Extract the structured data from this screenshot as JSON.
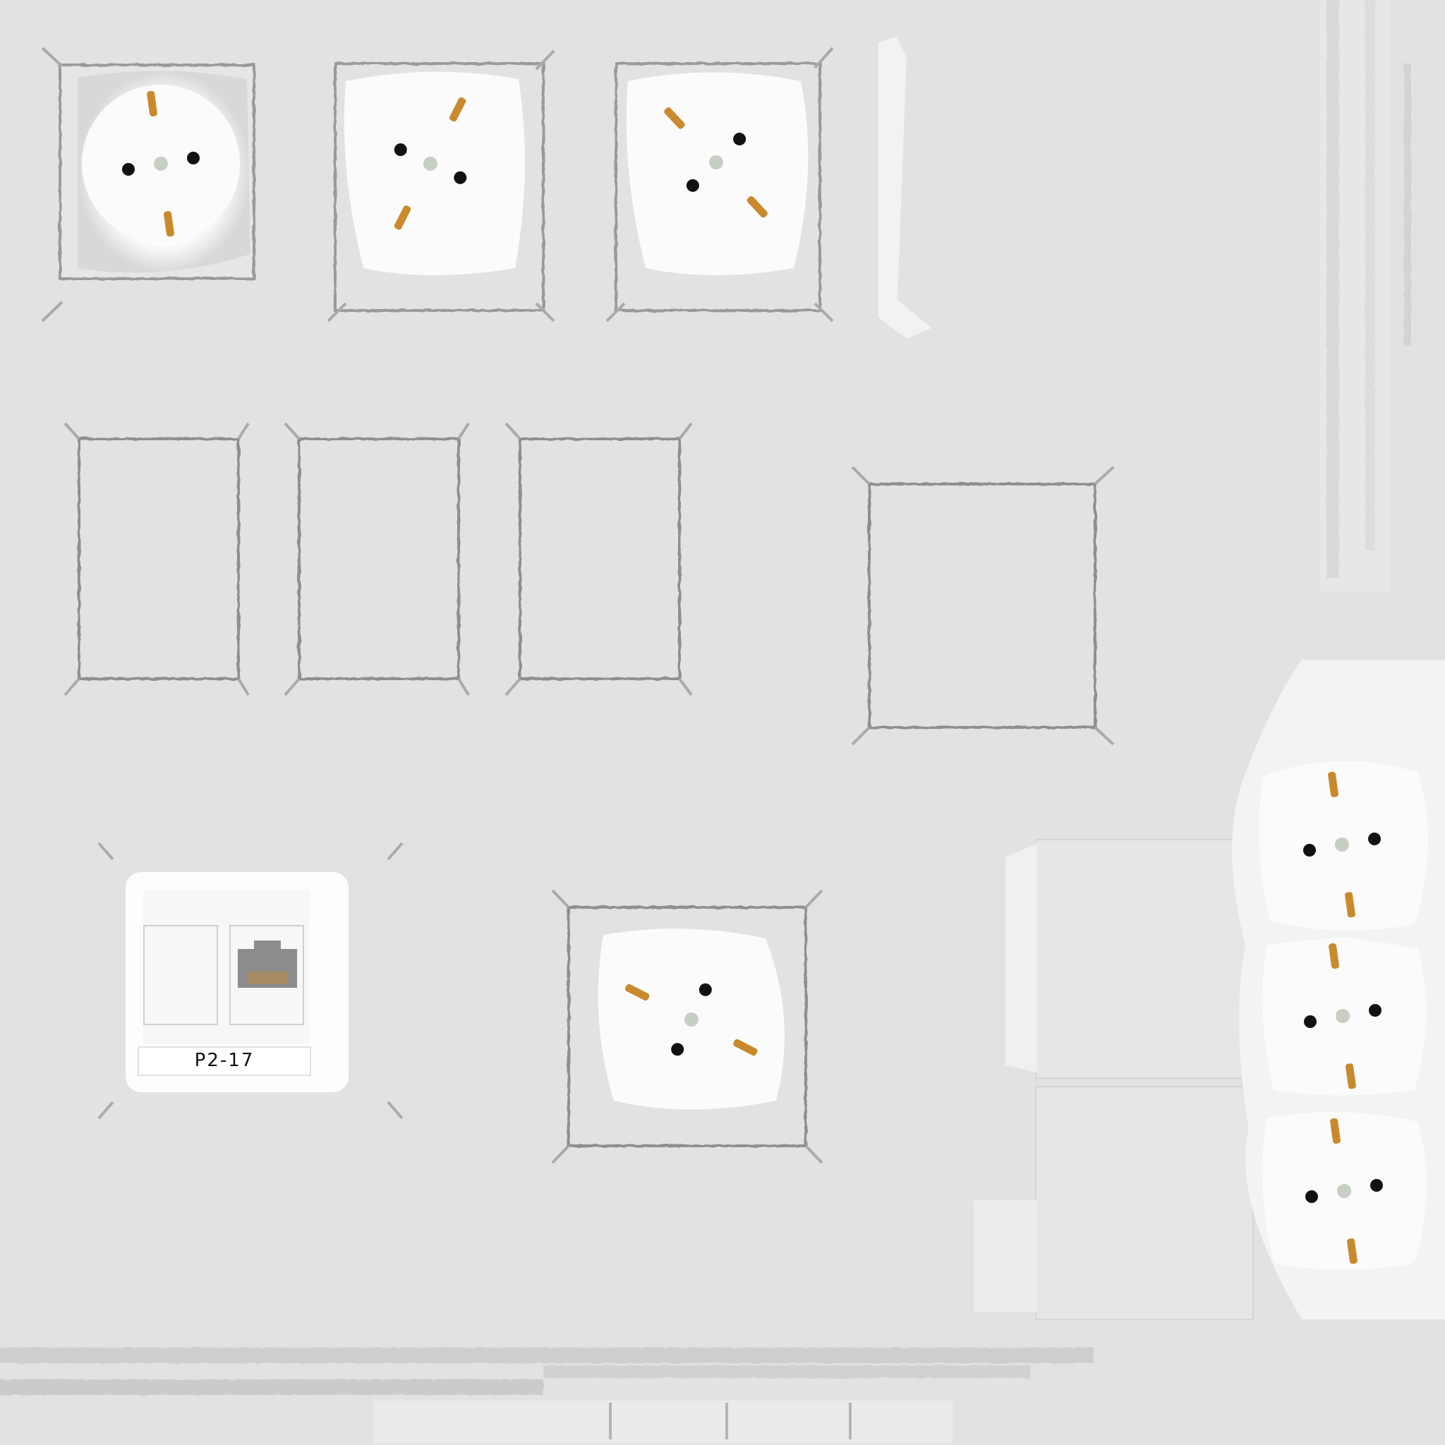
{
  "texture": {
    "background_color": "#e2e2e2",
    "colors": {
      "socket_face": "#fbfbfb",
      "pin_hole": "#111111",
      "center_screw": "#c7cec4",
      "ground_clip": "#c98a2e",
      "plate_edge": "#8a8a8a",
      "rj45_port": "#8c8c8c",
      "rj45_contacts": "#b08a52"
    },
    "data_outlet": {
      "label": "P2-17",
      "port_icon": "rj45-port-icon"
    },
    "socket_count": 7,
    "blank_frame_count": 4,
    "strip_count": 3
  }
}
